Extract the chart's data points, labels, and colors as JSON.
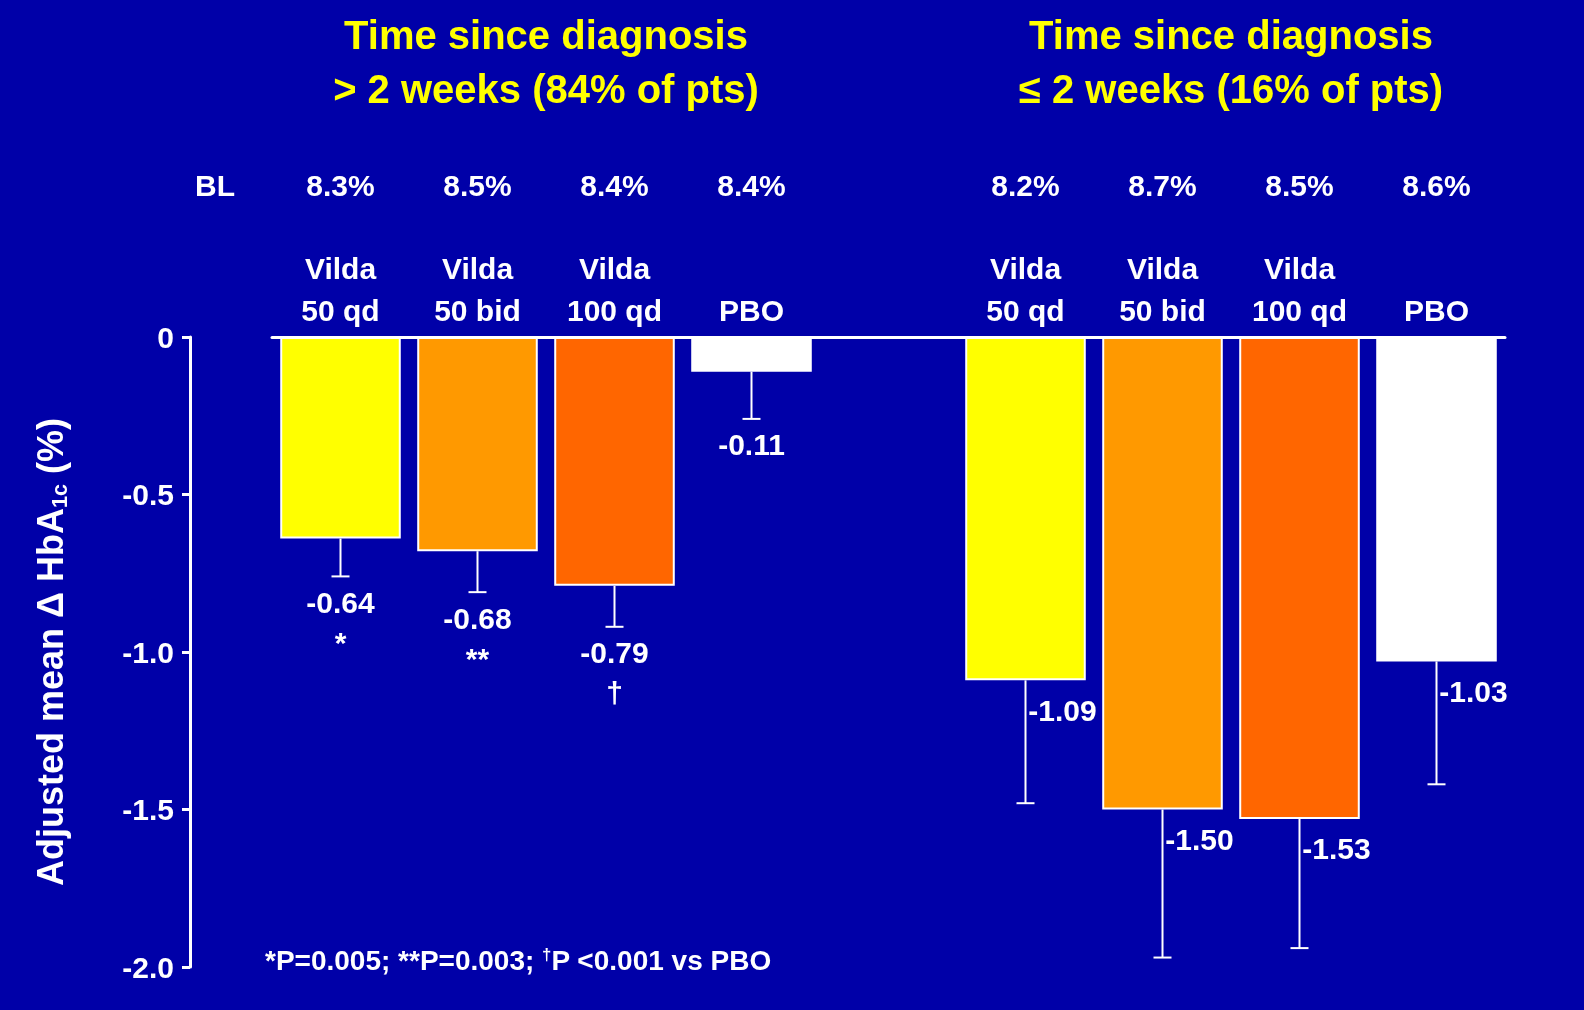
{
  "chart_data": {
    "type": "bar",
    "ylabel": "Adjusted mean Δ HbA$_{1c}$ (%)",
    "categories": [
      "Vilda 50 qd",
      "Vilda 50 bid",
      "Vilda 100 qd",
      "PBO",
      null,
      "Vilda 50 qd",
      "Vilda 50 bid",
      "Vilda 100 qd",
      "PBO"
    ],
    "values": [
      -0.64,
      -0.68,
      -0.79,
      -0.11,
      null,
      -1.09,
      -1.5,
      -1.53,
      -1.03
    ],
    "colors": [
      "#ffff00",
      "#ff9900",
      "#ff6600",
      "#ffffff",
      "#ffffff",
      "#ffff00",
      "#ff9900",
      "#ff6600",
      "#ffffff"
    ],
    "errors": [
      [
        -0.76,
        -0.64
      ],
      [
        -0.81,
        -0.68
      ],
      [
        -0.92,
        -0.79
      ],
      [
        -0.26,
        -0.11
      ],
      null,
      [
        -1.48,
        -1.09
      ],
      [
        -1.97,
        -1.5
      ],
      [
        -1.94,
        -1.53
      ],
      [
        -1.42,
        -1.03
      ]
    ],
    "value_labels": [
      "-0.64\n*",
      "-0.68\n**",
      "-0.79\n†",
      "-0.11",
      null,
      "-1.09",
      "-1.50",
      "-1.53",
      "-1.03"
    ],
    "ylim": [
      -2,
      0
    ],
    "yticks": [
      {
        "value": -2,
        "label": "-2.0"
      },
      {
        "value": -1.5,
        "label": "-1.5"
      },
      {
        "value": -1,
        "label": "-1.0"
      },
      {
        "value": -0.5,
        "label": "-0.5"
      },
      0
    ],
    "grid": false,
    "annotations": [
      "Time since diagnosis\n> 2 weeks (84% of pts)",
      "Time since diagnosis\n≤ 2 weeks (16% of pts)",
      "BL",
      "8.3%",
      "8.5%",
      "8.4%",
      "8.4%",
      "8.2%",
      "8.7%",
      "8.5%",
      "8.6%",
      "*P=0.005; **P=0.003; $^{†}$P <0.001 vs PBO"
    ]
  }
}
